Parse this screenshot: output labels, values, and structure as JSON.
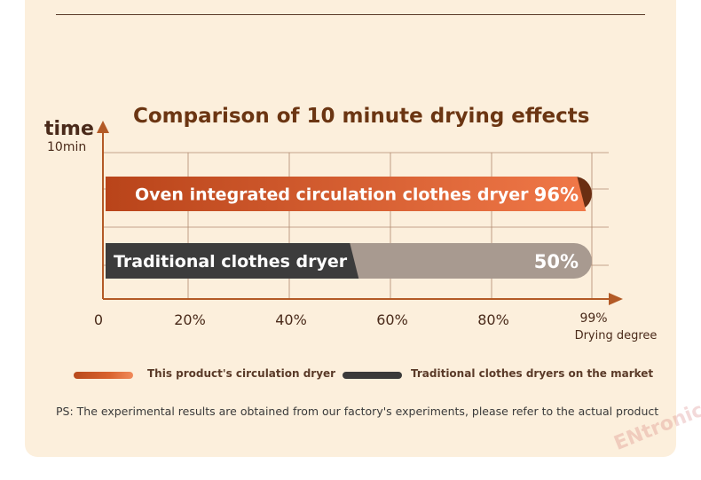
{
  "chart_data": {
    "type": "bar",
    "orientation": "horizontal",
    "title": "Comparison of 10 minute drying effects",
    "ylabel": "time",
    "yunit": "10min",
    "xlabel": "Drying degree",
    "xticks": [
      "0",
      "20%",
      "40%",
      "60%",
      "80%",
      "99%"
    ],
    "xlim": [
      0,
      99
    ],
    "series": [
      {
        "label": "Oven integrated circulation clothes dryer",
        "value": 96,
        "value_label": "96%",
        "color": "#e8663a",
        "tail_color": "#6a2e12"
      },
      {
        "label": "Traditional clothes dryer",
        "value": 50,
        "value_label": "50%",
        "color": "#3c3c3c",
        "tail_color": "#a89a90"
      }
    ],
    "legend": [
      {
        "label": "This product's circulation dryer",
        "color": "#d9622e"
      },
      {
        "label": "Traditional clothes dryers on the market",
        "color": "#3a3a3a"
      }
    ],
    "grid": true
  },
  "note": "PS: The experimental results are obtained from our factory's experiments, please refer to the actual product",
  "watermark": "ENtronic"
}
